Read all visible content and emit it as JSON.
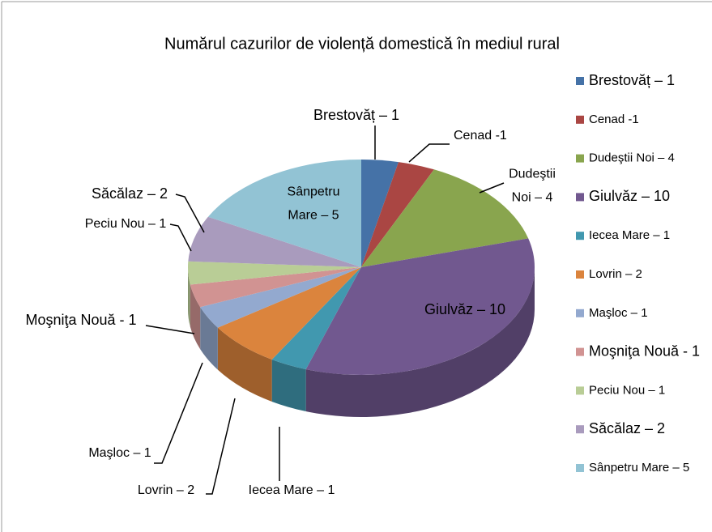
{
  "chart_data": {
    "type": "pie3d",
    "title": "Numărul cazurilor de violență domestică în mediul rural",
    "categories": [
      "Brestovăț – 1",
      "Cenad -1",
      "Dudeştii Noi – 4",
      "Giulvăz – 10",
      "Iecea Mare – 1",
      "Lovrin – 2",
      "Maşloc – 1",
      "Moşniţa Nouă  - 1",
      "Peciu Nou – 1",
      "Săcălaz – 2",
      "Sânpetru Mare – 5"
    ],
    "values": [
      1,
      1,
      4,
      10,
      1,
      2,
      1,
      1,
      1,
      2,
      5
    ],
    "value_labels": [
      "Brestovăț – 1",
      "Cenad -1",
      "Dudeştii\nNoi – 4",
      "Giulvăz – 10",
      "Iecea Mare – 1",
      "Lovrin – 2",
      "Maşloc – 1",
      "Moşniţa Nouă  - 1",
      "Peciu Nou – 1",
      "Săcălaz – 2",
      "Sânpetru\nMare – 5"
    ],
    "colors": [
      "#4572A7",
      "#AA4643",
      "#89A54E",
      "#71588F",
      "#4198AF",
      "#DB843D",
      "#93A9CF",
      "#D19392",
      "#B9CD96",
      "#A99BBD",
      "#92C3D4"
    ],
    "legend": "right"
  }
}
